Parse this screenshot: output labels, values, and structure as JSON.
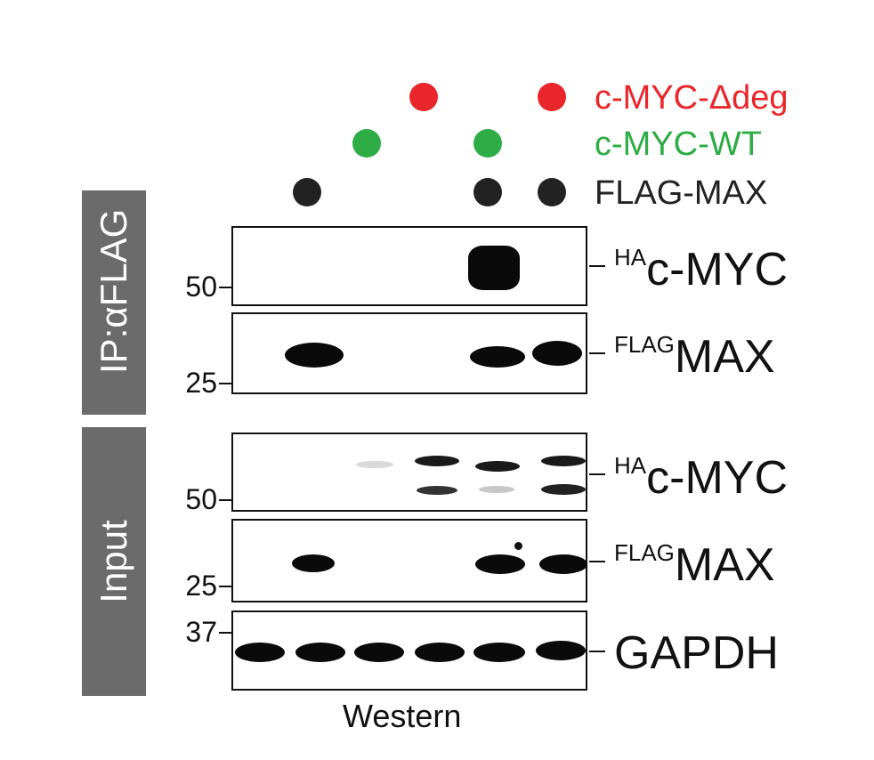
{
  "legend": {
    "row1": {
      "label": "c-MYC-Δdeg",
      "color": "#e8262b"
    },
    "row2": {
      "label": "c-MYC-WT",
      "color": "#2eac46"
    },
    "row3": {
      "label": "FLAG-MAX",
      "color": "#222222"
    }
  },
  "sections": {
    "ip": "IP:αFLAG",
    "input": "Input"
  },
  "markers": {
    "ip_50": "50",
    "ip_25": "25",
    "in_50": "50",
    "in_25": "25",
    "in_37": "37"
  },
  "panels": {
    "ip_myc": {
      "prefix": "HA",
      "name": "c-MYC"
    },
    "ip_max": {
      "prefix": "FLAG",
      "name": "MAX"
    },
    "in_myc": {
      "prefix": "HA",
      "name": "c-MYC"
    },
    "in_max": {
      "prefix": "FLAG",
      "name": "MAX"
    },
    "gapdh": {
      "prefix": "",
      "name": "GAPDH"
    }
  },
  "footer": "Western"
}
